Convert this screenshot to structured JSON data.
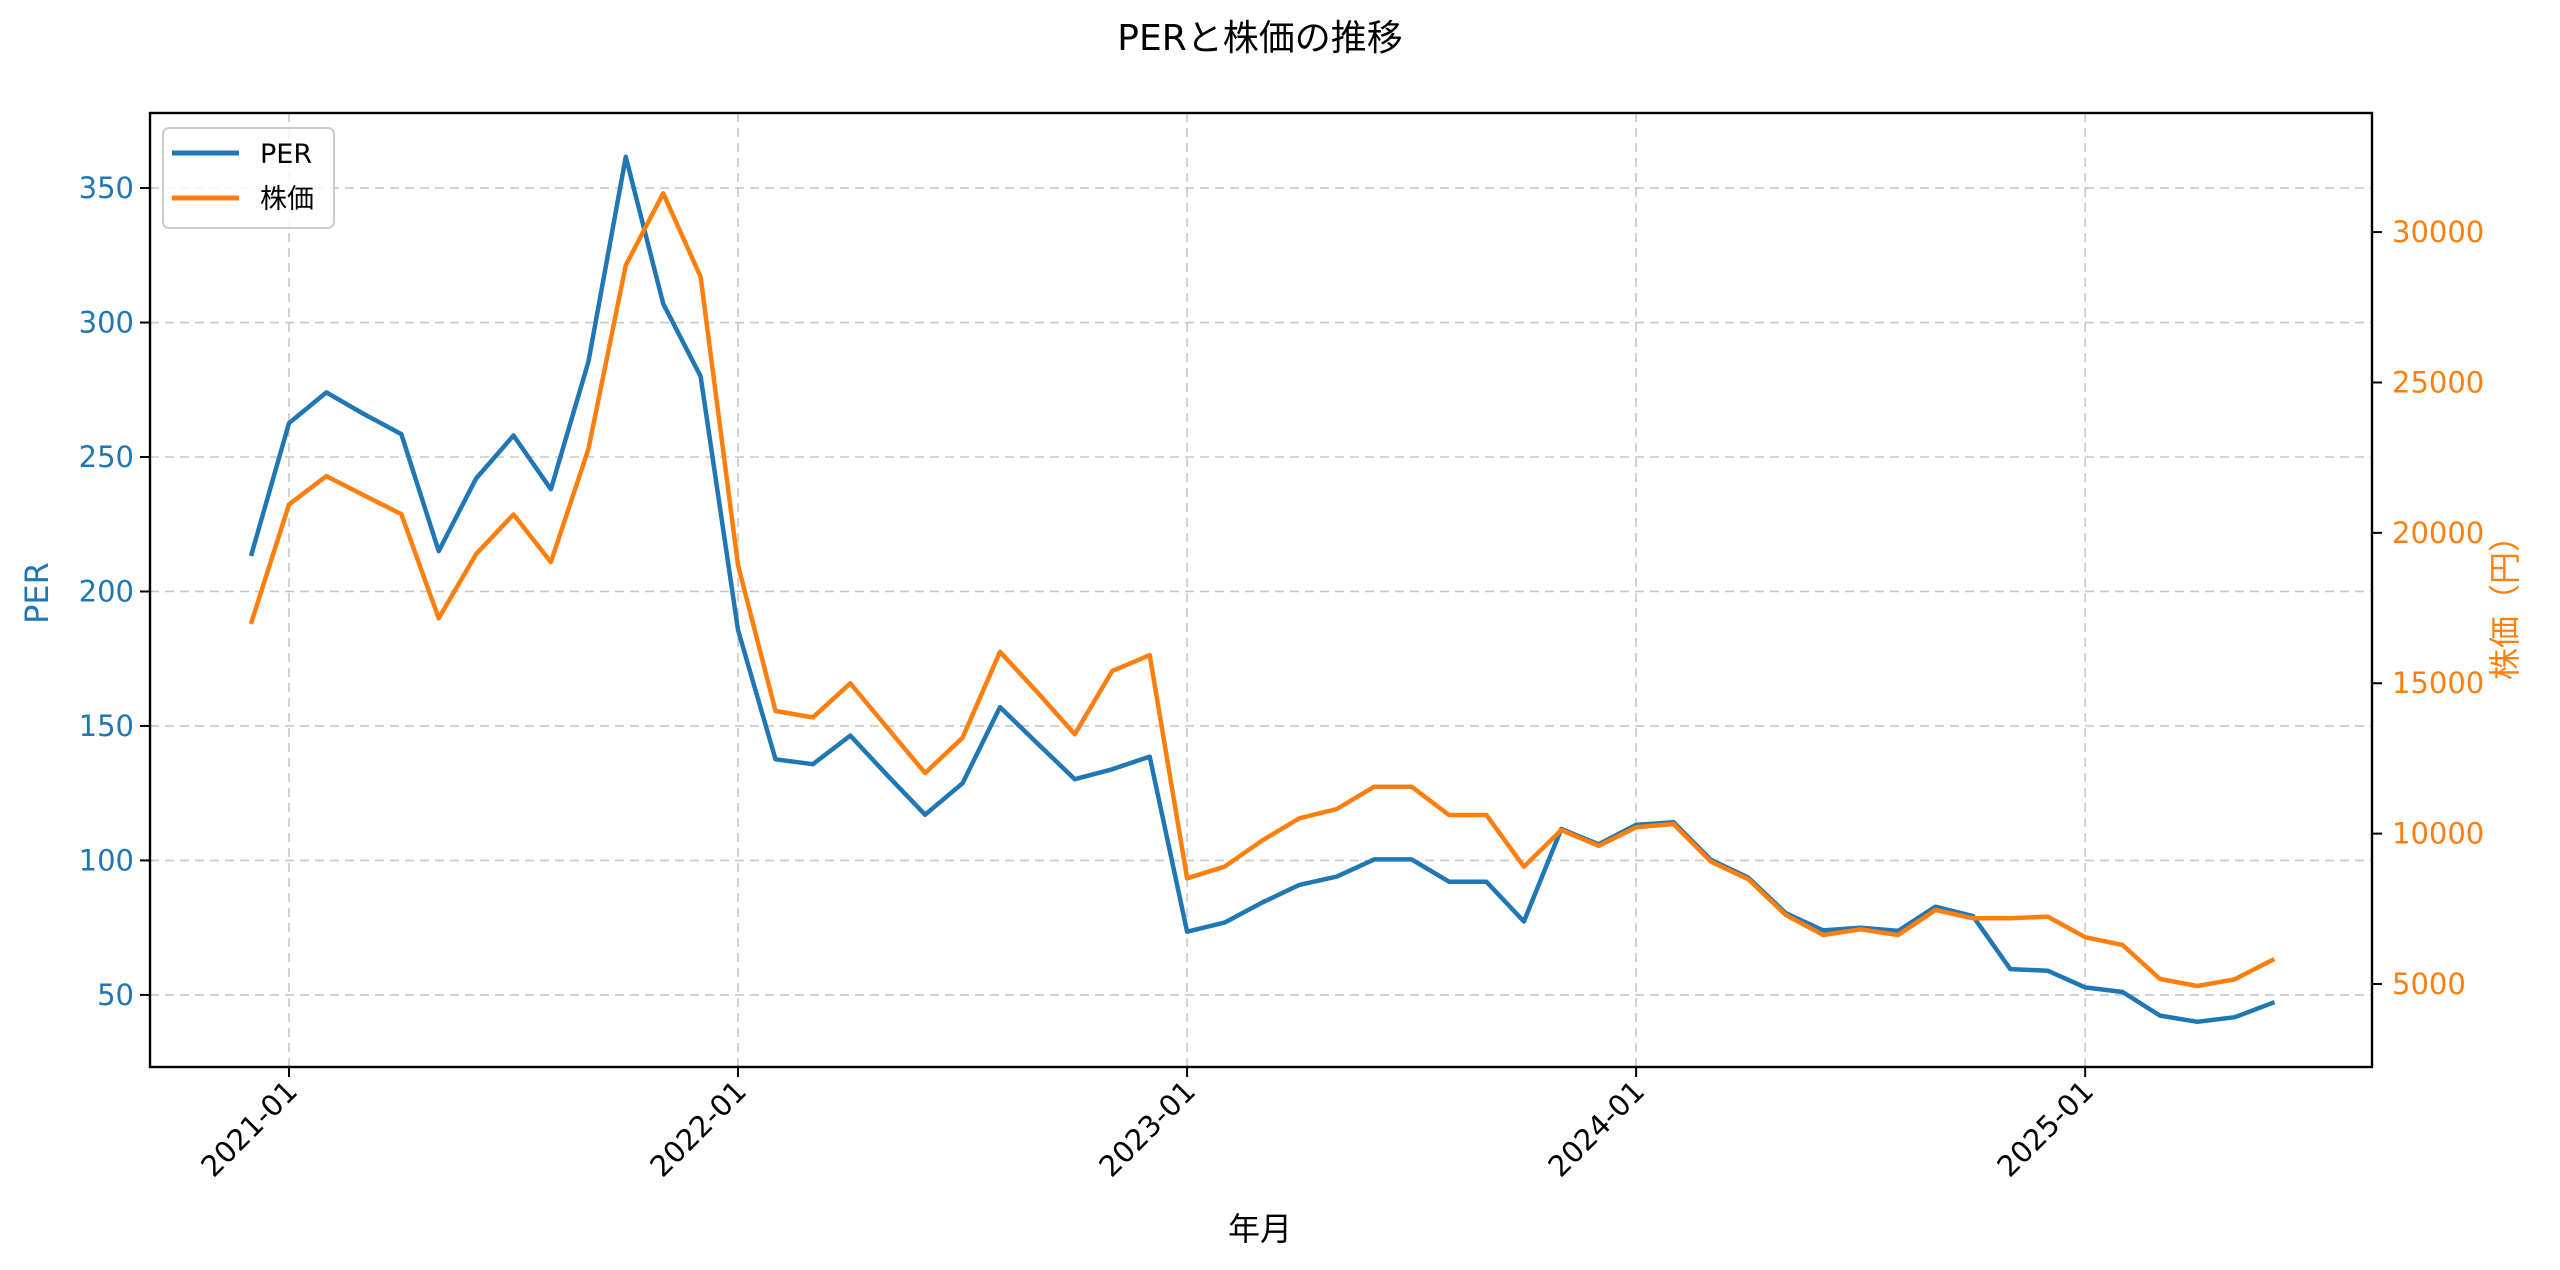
{
  "chart_data": {
    "type": "line",
    "title": "PERと株価の推移",
    "xlabel": "年月",
    "ylabel": "PER",
    "ylabel_right": "株価（円）",
    "x": [
      "2020-12",
      "2021-01",
      "2021-02",
      "2021-03",
      "2021-04",
      "2021-05",
      "2021-06",
      "2021-07",
      "2021-08",
      "2021-09",
      "2021-10",
      "2021-11",
      "2021-12",
      "2022-01",
      "2022-02",
      "2022-03",
      "2022-04",
      "2022-05",
      "2022-06",
      "2022-07",
      "2022-08",
      "2022-09",
      "2022-10",
      "2022-11",
      "2022-12",
      "2023-01",
      "2023-02",
      "2023-03",
      "2023-04",
      "2023-05",
      "2023-06",
      "2023-07",
      "2023-08",
      "2023-09",
      "2023-10",
      "2023-11",
      "2023-12",
      "2024-01",
      "2024-02",
      "2024-03",
      "2024-04",
      "2024-05",
      "2024-06",
      "2024-07",
      "2024-08",
      "2024-09",
      "2024-10",
      "2024-11",
      "2024-12",
      "2025-01",
      "2025-02",
      "2025-03",
      "2025-04",
      "2025-05",
      "2025-06"
    ],
    "x_ticks": [
      "2021-01",
      "2022-01",
      "2023-01",
      "2024-01",
      "2025-01"
    ],
    "series": [
      {
        "name": "PER",
        "axis": "left",
        "color": "#1f77b4",
        "values": [
          214,
          262.6,
          274,
          266,
          258.5,
          215,
          242,
          258,
          238,
          285.4,
          361.6,
          307,
          280,
          185.7,
          137.6,
          135.8,
          146.4,
          131.5,
          117,
          128.7,
          157,
          143.5,
          130.2,
          133.9,
          138.6,
          73.5,
          76.9,
          84.3,
          90.9,
          94,
          100.4,
          100.4,
          92.1,
          92.1,
          77.3,
          111.7,
          106,
          113.2,
          114.2,
          100.2,
          93.6,
          80.4,
          74,
          75,
          73.8,
          82.8,
          79.3,
          59.6,
          59,
          52.8,
          51.1,
          42.3,
          40,
          41.7,
          47
        ]
      },
      {
        "name": "株価",
        "axis": "right",
        "color": "#ff7f0e",
        "values": [
          17044,
          20947,
          21888,
          21250,
          20625,
          17158,
          19295,
          20615,
          19029,
          22786,
          28900,
          31290,
          28515,
          18929,
          14076,
          13865,
          14997,
          13500,
          12015,
          13190,
          16045,
          14700,
          13305,
          15406,
          15937,
          8513,
          8900,
          9764,
          10509,
          10818,
          11560,
          11560,
          10620,
          10620,
          8900,
          10120,
          9590,
          10210,
          10319,
          9066,
          8480,
          7294,
          6629,
          6817,
          6629,
          7460,
          7184,
          7184,
          7240,
          6556,
          6297,
          5166,
          4934,
          5156,
          5798
        ]
      }
    ],
    "y_left": {
      "ticks": [
        50,
        100,
        150,
        200,
        250,
        300,
        350
      ],
      "ylim": [
        23.2,
        377.9
      ],
      "color": "#1f77b4"
    },
    "y_right": {
      "ticks": [
        5000,
        10000,
        15000,
        20000,
        25000,
        30000
      ],
      "ylim": [
        2240,
        33960
      ],
      "color": "#ff7f0e"
    },
    "grid": true,
    "legend": {
      "position": "upper left",
      "entries": [
        "PER",
        "株価"
      ]
    }
  }
}
